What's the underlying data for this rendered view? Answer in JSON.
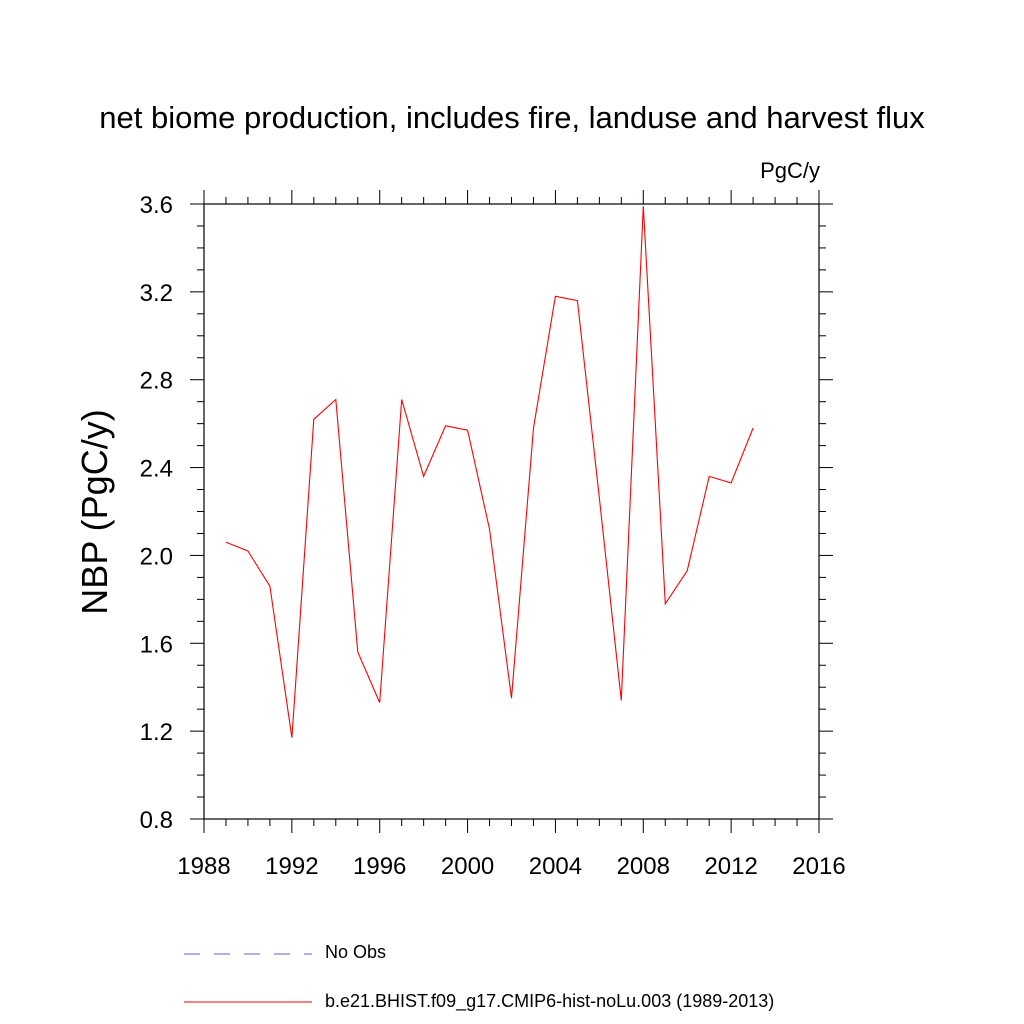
{
  "chart_data": {
    "type": "line",
    "title": "net biome production, includes fire, landuse and harvest flux",
    "units": "PgC/y",
    "ylabel": "NBP  (PgC/y)",
    "xlabel": "",
    "xlim": [
      1988,
      2016
    ],
    "ylim": [
      0.8,
      3.6
    ],
    "xticks": [
      "1988",
      "1992",
      "1996",
      "2000",
      "2004",
      "2008",
      "2012",
      "2016"
    ],
    "yticks": [
      "0.8",
      "1.2",
      "1.6",
      "2.0",
      "2.4",
      "2.8",
      "3.2",
      "3.6"
    ],
    "grid": false,
    "legend_position": "bottom",
    "series": [
      {
        "name": "b.e21.BHIST.f09_g17.CMIP6-hist-noLu.003 (1989-2013)",
        "color": "#ff0000",
        "x": [
          1989,
          1990,
          1991,
          1992,
          1993,
          1994,
          1995,
          1996,
          1997,
          1998,
          1999,
          2000,
          2001,
          2002,
          2003,
          2004,
          2005,
          2006,
          2007,
          2008,
          2009,
          2010,
          2011,
          2012,
          2013
        ],
        "y": [
          2.06,
          2.02,
          1.86,
          1.17,
          2.62,
          2.71,
          1.56,
          1.33,
          2.71,
          2.36,
          2.59,
          2.57,
          2.12,
          1.35,
          2.58,
          3.18,
          3.16,
          2.26,
          1.34,
          3.59,
          1.78,
          1.93,
          2.36,
          2.33,
          2.58
        ]
      }
    ],
    "legend": [
      {
        "label": "No Obs",
        "color": "#6a5acd",
        "dashed": true
      },
      {
        "label": "b.e21.BHIST.f09_g17.CMIP6-hist-noLu.003 (1989-2013)",
        "color": "#ff0000",
        "dashed": false
      }
    ]
  }
}
